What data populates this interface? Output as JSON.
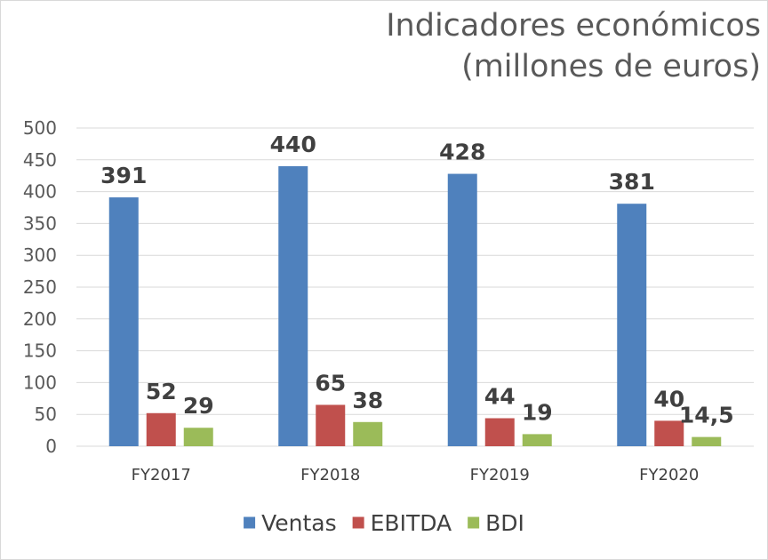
{
  "chart_data": {
    "type": "bar",
    "title_lines": [
      "Indicadores económicos",
      "(millones de euros)"
    ],
    "categories": [
      "FY2017",
      "FY2018",
      "FY2019",
      "FY2020"
    ],
    "series": [
      {
        "name": "Ventas",
        "color": "#4F81BD",
        "values": [
          391,
          440,
          428,
          381
        ],
        "labels": [
          "391",
          "440",
          "428",
          "381"
        ]
      },
      {
        "name": "EBITDA",
        "color": "#C0504D",
        "values": [
          52,
          65,
          44,
          40
        ],
        "labels": [
          "52",
          "65",
          "44",
          "40"
        ]
      },
      {
        "name": "BDI",
        "color": "#9BBB59",
        "values": [
          29,
          38,
          19,
          14.5
        ],
        "labels": [
          "29",
          "38",
          "19",
          "14,5"
        ]
      }
    ],
    "ylim": [
      0,
      500
    ],
    "yticks": [
      "0",
      "50",
      "100",
      "150",
      "200",
      "250",
      "300",
      "350",
      "400",
      "450",
      "500"
    ],
    "ytick_values": [
      0,
      50,
      100,
      150,
      200,
      250,
      300,
      350,
      400,
      450,
      500
    ],
    "grid": true,
    "legend": "bottom",
    "xlabel": "",
    "ylabel": ""
  }
}
